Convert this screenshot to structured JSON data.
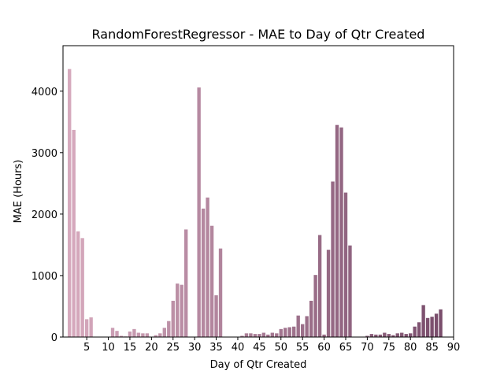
{
  "chart_data": {
    "type": "bar",
    "title": "RandomForestRegressor - MAE to Day of Qtr Created",
    "xlabel": "Day of Qtr Created",
    "ylabel": "MAE (Hours)",
    "xlim": [
      -0.5,
      90
    ],
    "ylim": [
      0,
      4740
    ],
    "xticks": [
      5,
      10,
      15,
      20,
      25,
      30,
      35,
      40,
      45,
      50,
      55,
      60,
      65,
      70,
      75,
      80,
      85,
      90
    ],
    "yticks": [
      0,
      1000,
      2000,
      3000,
      4000
    ],
    "grid": false,
    "legend": "none",
    "colors": {
      "light": "#d6a9bd",
      "dark": "#7a4e6c"
    },
    "series": [
      {
        "values": [
          4360,
          3370,
          1720,
          1610,
          290,
          320,
          0,
          0,
          0,
          0,
          150,
          100,
          20,
          10,
          90,
          130,
          70,
          60,
          60,
          0,
          30,
          60,
          150,
          260,
          590,
          870,
          850,
          1750,
          0,
          0,
          4060,
          2090,
          2270,
          1810,
          680,
          1440,
          0,
          0,
          0,
          0,
          20,
          60,
          60,
          50,
          50,
          70,
          40,
          70,
          60,
          130,
          150,
          160,
          170,
          350,
          210,
          340,
          590,
          1010,
          1660,
          40,
          1420,
          2530,
          3450,
          3410,
          2350,
          1490,
          0,
          0,
          0,
          20,
          50,
          40,
          40,
          70,
          50,
          30,
          60,
          70,
          50,
          60,
          170,
          240,
          520,
          310,
          330,
          380,
          450
        ]
      }
    ]
  }
}
